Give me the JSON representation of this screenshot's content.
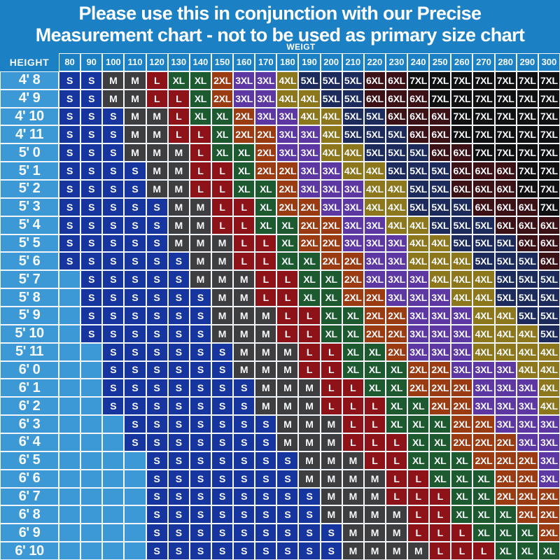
{
  "title": {
    "line1": "Please use this in conjunction with our Precise",
    "line2": "Measurement chart - not to be used as primary size chart"
  },
  "chart_data": {
    "type": "table",
    "title": "Please use this in conjunction with our Precise Measurement chart - not to be used as primary size chart",
    "x_axis_label": "WEIGT",
    "y_axis_label": "HEIGHT",
    "columns": [
      "80",
      "90",
      "100",
      "110",
      "120",
      "130",
      "140",
      "150",
      "160",
      "170",
      "180",
      "190",
      "200",
      "210",
      "220",
      "230",
      "240",
      "250",
      "260",
      "270",
      "280",
      "290",
      "300"
    ],
    "rows": [
      {
        "height": "4' 8",
        "sizes": [
          "S",
          "S",
          "M",
          "M",
          "L",
          "XL",
          "XL",
          "2XL",
          "3XL",
          "3XL",
          "4XL",
          "5XL",
          "5XL",
          "5XL",
          "6XL",
          "6XL",
          "7XL",
          "7XL",
          "7XL",
          "7XL",
          "7XL",
          "7XL",
          "7XL"
        ]
      },
      {
        "height": "4' 9",
        "sizes": [
          "S",
          "S",
          "M",
          "M",
          "L",
          "L",
          "XL",
          "2XL",
          "3XL",
          "3XL",
          "4XL",
          "4XL",
          "5XL",
          "5XL",
          "6XL",
          "6XL",
          "6XL",
          "7XL",
          "7XL",
          "7XL",
          "7XL",
          "7XL",
          "7XL"
        ]
      },
      {
        "height": "4' 10",
        "sizes": [
          "S",
          "S",
          "S",
          "M",
          "M",
          "L",
          "XL",
          "XL",
          "2XL",
          "3XL",
          "3XL",
          "4XL",
          "4XL",
          "5XL",
          "5XL",
          "6XL",
          "6XL",
          "6XL",
          "7XL",
          "7XL",
          "7XL",
          "7XL",
          "7XL"
        ]
      },
      {
        "height": "4' 11",
        "sizes": [
          "S",
          "S",
          "S",
          "M",
          "M",
          "L",
          "L",
          "XL",
          "2XL",
          "2XL",
          "3XL",
          "3XL",
          "4XL",
          "5XL",
          "5XL",
          "5XL",
          "6XL",
          "6XL",
          "7XL",
          "7XL",
          "7XL",
          "7XL",
          "7XL"
        ]
      },
      {
        "height": "5' 0",
        "sizes": [
          "S",
          "S",
          "S",
          "M",
          "M",
          "M",
          "L",
          "XL",
          "XL",
          "2XL",
          "3XL",
          "3XL",
          "4XL",
          "4XL",
          "5XL",
          "5XL",
          "5XL",
          "6XL",
          "6XL",
          "7XL",
          "7XL",
          "7XL",
          "7XL"
        ]
      },
      {
        "height": "5' 1",
        "sizes": [
          "S",
          "S",
          "S",
          "S",
          "M",
          "M",
          "L",
          "L",
          "XL",
          "2XL",
          "2XL",
          "3XL",
          "3XL",
          "4XL",
          "4XL",
          "5XL",
          "5XL",
          "5XL",
          "6XL",
          "6XL",
          "6XL",
          "7XL",
          "7XL"
        ]
      },
      {
        "height": "5' 2",
        "sizes": [
          "S",
          "S",
          "S",
          "S",
          "M",
          "M",
          "L",
          "L",
          "XL",
          "XL",
          "2XL",
          "3XL",
          "3XL",
          "3XL",
          "4XL",
          "4XL",
          "5XL",
          "5XL",
          "6XL",
          "6XL",
          "6XL",
          "7XL",
          "7XL"
        ]
      },
      {
        "height": "5' 3",
        "sizes": [
          "S",
          "S",
          "S",
          "S",
          "S",
          "M",
          "M",
          "L",
          "L",
          "XL",
          "2XL",
          "2XL",
          "3XL",
          "3XL",
          "4XL",
          "4XL",
          "5XL",
          "5XL",
          "5XL",
          "6XL",
          "6XL",
          "6XL",
          "7XL"
        ]
      },
      {
        "height": "5' 4",
        "sizes": [
          "S",
          "S",
          "S",
          "S",
          "S",
          "M",
          "M",
          "L",
          "L",
          "XL",
          "XL",
          "2XL",
          "2XL",
          "3XL",
          "3XL",
          "4XL",
          "4XL",
          "5XL",
          "5XL",
          "5XL",
          "6XL",
          "6XL",
          "6XL"
        ]
      },
      {
        "height": "5' 5",
        "sizes": [
          "S",
          "S",
          "S",
          "S",
          "S",
          "M",
          "M",
          "M",
          "L",
          "L",
          "XL",
          "2XL",
          "2XL",
          "3XL",
          "3XL",
          "3XL",
          "4XL",
          "4XL",
          "5XL",
          "5XL",
          "5XL",
          "6XL",
          "6XL"
        ]
      },
      {
        "height": "5' 6",
        "sizes": [
          "S",
          "S",
          "S",
          "S",
          "S",
          "S",
          "M",
          "M",
          "L",
          "L",
          "XL",
          "XL",
          "2XL",
          "2XL",
          "3XL",
          "3XL",
          "4XL",
          "4XL",
          "4XL",
          "5XL",
          "5XL",
          "5XL",
          "6XL"
        ]
      },
      {
        "height": "5' 7",
        "sizes": [
          "",
          "S",
          "S",
          "S",
          "S",
          "S",
          "M",
          "M",
          "M",
          "L",
          "L",
          "XL",
          "XL",
          "2XL",
          "3XL",
          "3XL",
          "3XL",
          "4XL",
          "4XL",
          "4XL",
          "5XL",
          "5XL",
          "5XL"
        ]
      },
      {
        "height": "5' 8",
        "sizes": [
          "",
          "S",
          "S",
          "S",
          "S",
          "S",
          "S",
          "M",
          "M",
          "L",
          "L",
          "XL",
          "XL",
          "2XL",
          "2XL",
          "3XL",
          "3XL",
          "3XL",
          "4XL",
          "4XL",
          "5XL",
          "5XL",
          "5XL"
        ]
      },
      {
        "height": "5' 9",
        "sizes": [
          "",
          "S",
          "S",
          "S",
          "S",
          "S",
          "S",
          "M",
          "M",
          "M",
          "L",
          "L",
          "XL",
          "XL",
          "2XL",
          "2XL",
          "3XL",
          "3XL",
          "3XL",
          "4XL",
          "4XL",
          "5XL",
          "5XL"
        ]
      },
      {
        "height": "5' 10",
        "sizes": [
          "",
          "S",
          "S",
          "S",
          "S",
          "S",
          "S",
          "M",
          "M",
          "M",
          "L",
          "L",
          "XL",
          "XL",
          "2XL",
          "2XL",
          "3XL",
          "3XL",
          "3XL",
          "4XL",
          "4XL",
          "4XL",
          "5XL"
        ]
      },
      {
        "height": "5' 11",
        "sizes": [
          "",
          "",
          "S",
          "S",
          "S",
          "S",
          "S",
          "S",
          "M",
          "M",
          "M",
          "L",
          "L",
          "XL",
          "XL",
          "2XL",
          "3XL",
          "3XL",
          "3XL",
          "4XL",
          "4XL",
          "4XL",
          "4XL"
        ]
      },
      {
        "height": "6' 0",
        "sizes": [
          "",
          "",
          "S",
          "S",
          "S",
          "S",
          "S",
          "S",
          "M",
          "M",
          "M",
          "L",
          "L",
          "XL",
          "XL",
          "XL",
          "2XL",
          "2XL",
          "3XL",
          "3XL",
          "3XL",
          "4XL",
          "4XL"
        ]
      },
      {
        "height": "6' 1",
        "sizes": [
          "",
          "",
          "S",
          "S",
          "S",
          "S",
          "S",
          "S",
          "S",
          "M",
          "M",
          "M",
          "L",
          "L",
          "XL",
          "XL",
          "2XL",
          "2XL",
          "2XL",
          "3XL",
          "3XL",
          "3XL",
          "4XL"
        ]
      },
      {
        "height": "6' 2",
        "sizes": [
          "",
          "",
          "S",
          "S",
          "S",
          "S",
          "S",
          "S",
          "S",
          "M",
          "M",
          "M",
          "L",
          "L",
          "L",
          "XL",
          "XL",
          "2XL",
          "2XL",
          "3XL",
          "3XL",
          "3XL",
          "4XL"
        ]
      },
      {
        "height": "6' 3",
        "sizes": [
          "",
          "",
          "",
          "S",
          "S",
          "S",
          "S",
          "S",
          "S",
          "S",
          "M",
          "M",
          "M",
          "L",
          "L",
          "XL",
          "XL",
          "XL",
          "2XL",
          "2XL",
          "3XL",
          "3XL",
          "3XL"
        ]
      },
      {
        "height": "6' 4",
        "sizes": [
          "",
          "",
          "",
          "S",
          "S",
          "S",
          "S",
          "S",
          "S",
          "S",
          "M",
          "M",
          "M",
          "L",
          "L",
          "L",
          "XL",
          "XL",
          "2XL",
          "2XL",
          "2XL",
          "3XL",
          "3XL"
        ]
      },
      {
        "height": "6' 5",
        "sizes": [
          "",
          "",
          "",
          "",
          "S",
          "S",
          "S",
          "S",
          "S",
          "S",
          "S",
          "M",
          "M",
          "M",
          "L",
          "L",
          "XL",
          "XL",
          "XL",
          "2XL",
          "2XL",
          "2XL",
          "3XL"
        ]
      },
      {
        "height": "6' 6",
        "sizes": [
          "",
          "",
          "",
          "",
          "S",
          "S",
          "S",
          "S",
          "S",
          "S",
          "S",
          "M",
          "M",
          "M",
          "M",
          "L",
          "L",
          "XL",
          "XL",
          "XL",
          "2XL",
          "2XL",
          "3XL"
        ]
      },
      {
        "height": "6' 7",
        "sizes": [
          "",
          "",
          "",
          "",
          "S",
          "S",
          "S",
          "S",
          "S",
          "S",
          "S",
          "S",
          "M",
          "M",
          "M",
          "L",
          "L",
          "L",
          "XL",
          "XL",
          "2XL",
          "2XL",
          "2XL"
        ]
      },
      {
        "height": "6' 8",
        "sizes": [
          "",
          "",
          "",
          "",
          "S",
          "S",
          "S",
          "S",
          "S",
          "S",
          "S",
          "S",
          "M",
          "M",
          "M",
          "M",
          "L",
          "L",
          "XL",
          "XL",
          "XL",
          "2XL",
          "2XL"
        ]
      },
      {
        "height": "6' 9",
        "sizes": [
          "",
          "",
          "",
          "",
          "S",
          "S",
          "S",
          "S",
          "S",
          "S",
          "S",
          "S",
          "S",
          "M",
          "M",
          "M",
          "L",
          "L",
          "L",
          "XL",
          "XL",
          "XL",
          "2XL"
        ]
      },
      {
        "height": "6' 10",
        "sizes": [
          "",
          "",
          "",
          "",
          "S",
          "S",
          "S",
          "S",
          "S",
          "S",
          "S",
          "S",
          "S",
          "M",
          "M",
          "M",
          "M",
          "L",
          "L",
          "L",
          "XL",
          "XL",
          "XL"
        ]
      }
    ]
  },
  "colors": {
    "page_background": "#1b80c4",
    "light_blue_cell": "#3d99d6",
    "grid_line": "#f2f6fa",
    "text": "#ffffff",
    "sizes": {
      "S": "#17359f",
      "M": "#3e3e40",
      "L": "#8e1318",
      "XL": "#1d5a2f",
      "2XL": "#9b3b11",
      "3XL": "#5d38a3",
      "4XL": "#8c771c",
      "5XL": "#1c2a5c",
      "6XL": "#3c1116",
      "7XL": "#101011"
    }
  }
}
